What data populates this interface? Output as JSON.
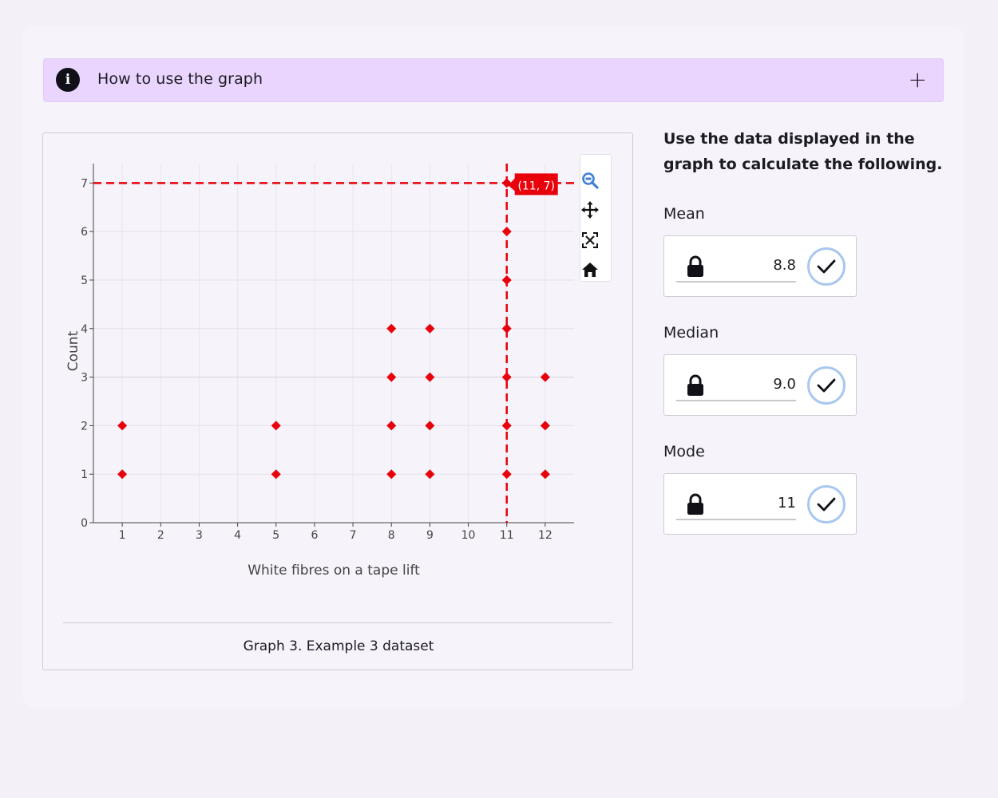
{
  "accordion": {
    "title": "How to use the graph",
    "info_icon": "info-circle-icon",
    "toggle_icon": "plus-icon",
    "info_glyph": "i",
    "toggle_glyph": "+"
  },
  "graph": {
    "caption": "Graph 3. Example 3 dataset",
    "hover_label": "(11, 7)",
    "modebar": [
      "zoom-icon",
      "pan-icon",
      "autoscale-icon",
      "reset-home-icon"
    ]
  },
  "chart_data": {
    "type": "scatter",
    "title": "",
    "xlabel": "White fibres on a tape lift",
    "ylabel": "Count",
    "xlim": [
      0.25,
      12.75
    ],
    "ylim": [
      0,
      7.4
    ],
    "xticks": [
      1,
      2,
      3,
      4,
      5,
      6,
      7,
      8,
      9,
      10,
      11,
      12
    ],
    "yticks": [
      0,
      1,
      2,
      3,
      4,
      5,
      6,
      7
    ],
    "grid": true,
    "marker": "diamond",
    "color": "#e8000b",
    "points": [
      [
        1,
        1
      ],
      [
        1,
        2
      ],
      [
        5,
        1
      ],
      [
        5,
        2
      ],
      [
        8,
        1
      ],
      [
        8,
        2
      ],
      [
        8,
        3
      ],
      [
        8,
        4
      ],
      [
        9,
        1
      ],
      [
        9,
        2
      ],
      [
        9,
        3
      ],
      [
        9,
        4
      ],
      [
        11,
        1
      ],
      [
        11,
        2
      ],
      [
        11,
        3
      ],
      [
        11,
        4
      ],
      [
        11,
        5
      ],
      [
        11,
        6
      ],
      [
        11,
        7
      ],
      [
        12,
        1
      ],
      [
        12,
        2
      ],
      [
        12,
        3
      ]
    ],
    "hover_point": [
      11,
      7
    ]
  },
  "questions": {
    "instructions": "Use the data displayed in the graph to calculate the following.",
    "fields": [
      {
        "label": "Mean",
        "value": "8.8",
        "status": "correct"
      },
      {
        "label": "Median",
        "value": "9.0",
        "status": "correct"
      },
      {
        "label": "Mode",
        "value": "11",
        "status": "correct"
      }
    ]
  },
  "colors": {
    "accent": "#ead5ff",
    "marker": "#e8000b",
    "check_ring": "#a9c7ef",
    "modebar_active": "#3f7fd6"
  }
}
